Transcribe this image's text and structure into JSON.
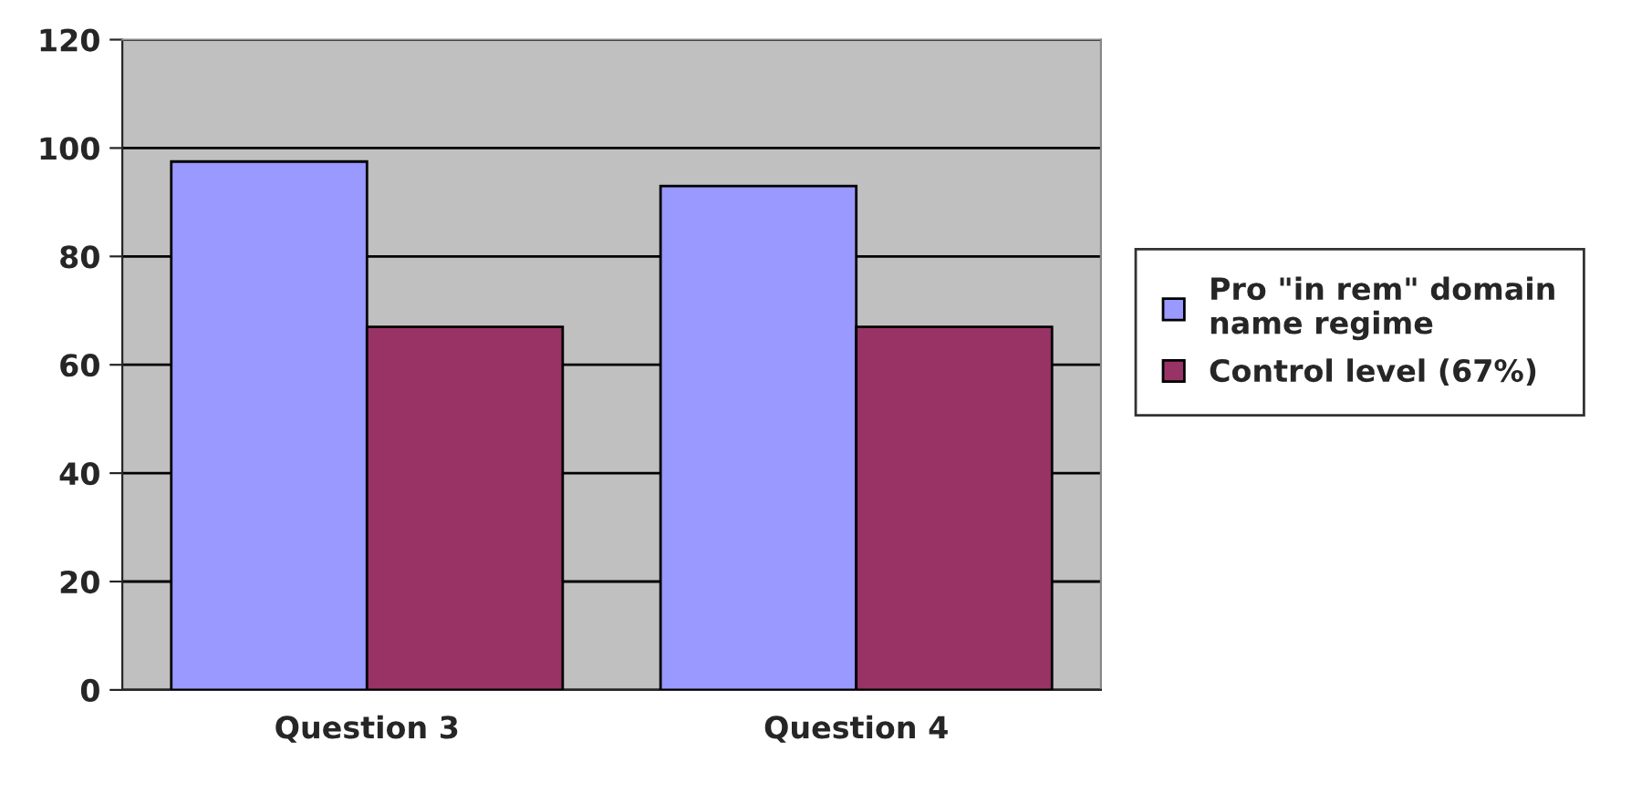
{
  "chart_data": {
    "type": "bar",
    "categories": [
      "Question 3",
      "Question 4"
    ],
    "series": [
      {
        "name": "Pro \"in rem\" domain\nname regime",
        "color": "#9999ff",
        "values": [
          97.5,
          93
        ]
      },
      {
        "name": "Control level (67%)",
        "color": "#993366",
        "values": [
          67,
          67
        ]
      }
    ],
    "ylim": [
      0,
      120
    ],
    "yticks": [
      0,
      20,
      40,
      60,
      80,
      100,
      120
    ],
    "grid": "y",
    "legend": "right"
  }
}
